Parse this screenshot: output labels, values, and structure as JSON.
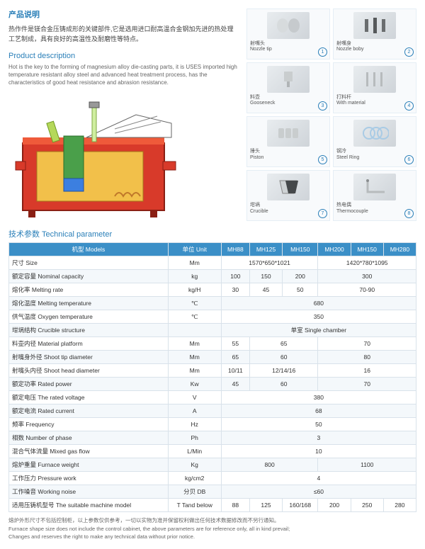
{
  "title_cn": "产品说明",
  "desc_cn": "热作件是镁合金压铸成形的关键部件,它是选用进口耐高温合金钢加先进的热处理工艺制成，具有良好的高温性及耐磨性等特点。",
  "title_en": "Product description",
  "desc_en": "Hot is the key to the forming of magnesium alloy die-casting parts, it is USES imported high temperature resistant alloy steel and advanced heat treatment process, has the characteristics of good heat resistance and abrasion resistance.",
  "parts": [
    {
      "cn": "射嘴头",
      "en": "Nozzle tip",
      "num": "1"
    },
    {
      "cn": "射嘴身",
      "en": "Nozzle boby",
      "num": "2"
    },
    {
      "cn": "料壶",
      "en": "Gooseneck",
      "num": "3"
    },
    {
      "cn": "打料杆",
      "en": "With material",
      "num": "4"
    },
    {
      "cn": "捶头",
      "en": "Piston",
      "num": "5"
    },
    {
      "cn": "钢冷",
      "en": "Steel Ring",
      "num": "6"
    },
    {
      "cn": "坩埚",
      "en": "Crucible",
      "num": "7"
    },
    {
      "cn": "热电偶",
      "en": "Thermocouple",
      "num": "8"
    }
  ],
  "table_title": "技术参数 Technical parameter",
  "headers": [
    "机型 Models",
    "单位 Unit",
    "MH88",
    "MH125",
    "MH150",
    "MH200",
    "MH150",
    "MH280"
  ],
  "rows": [
    {
      "label": "尺寸 Size",
      "unit": "Mm",
      "cells": [
        {
          "v": "1570*650*1021",
          "span": 3
        },
        {
          "v": "1420*780*1095",
          "span": 3
        }
      ]
    },
    {
      "label": "额定容量 Nominal capacity",
      "unit": "kg",
      "cells": [
        {
          "v": "100"
        },
        {
          "v": "150"
        },
        {
          "v": "200"
        },
        {
          "v": "300",
          "span": 3
        }
      ]
    },
    {
      "label": "熔化率 Melting rate",
      "unit": "kg/H",
      "cells": [
        {
          "v": "30"
        },
        {
          "v": "45"
        },
        {
          "v": "50"
        },
        {
          "v": "70-90",
          "span": 3
        }
      ]
    },
    {
      "label": "熔化温度 Melting temperature",
      "unit": "℃",
      "cells": [
        {
          "v": "680",
          "span": 6
        }
      ]
    },
    {
      "label": "供气温度 Oxygen temperature",
      "unit": "℃",
      "cells": [
        {
          "v": "350",
          "span": 6
        }
      ]
    },
    {
      "label": "坩埚结构 Crucible structure",
      "unit": "",
      "cells": [
        {
          "v": "单室 Single chamber",
          "span": 6
        }
      ]
    },
    {
      "label": "料壶内径 Material platform",
      "unit": "Mm",
      "cells": [
        {
          "v": "55"
        },
        {
          "v": "65",
          "span": 2
        },
        {
          "v": "70",
          "span": 3
        }
      ]
    },
    {
      "label": "射嘴身外径 Shoot tip diameter",
      "unit": "Mm",
      "cells": [
        {
          "v": "65"
        },
        {
          "v": "60",
          "span": 2
        },
        {
          "v": "80",
          "span": 3
        }
      ]
    },
    {
      "label": "射嘴头内径 Shoot head diameter",
      "unit": "Mm",
      "cells": [
        {
          "v": "10/11"
        },
        {
          "v": "12/14/16",
          "span": 2
        },
        {
          "v": "16",
          "span": 3
        }
      ]
    },
    {
      "label": "额定功率 Rated power",
      "unit": "Kw",
      "cells": [
        {
          "v": "45"
        },
        {
          "v": "60",
          "span": 2
        },
        {
          "v": "70",
          "span": 3
        }
      ]
    },
    {
      "label": "额定电压 The rated voltage",
      "unit": "V",
      "cells": [
        {
          "v": "380",
          "span": 6
        }
      ]
    },
    {
      "label": "额定电流 Rated current",
      "unit": "A",
      "cells": [
        {
          "v": "68",
          "span": 6
        }
      ]
    },
    {
      "label": "频率 Frequency",
      "unit": "Hz",
      "cells": [
        {
          "v": "50",
          "span": 6
        }
      ]
    },
    {
      "label": "相数 Number of phase",
      "unit": "Ph",
      "cells": [
        {
          "v": "3",
          "span": 6
        }
      ]
    },
    {
      "label": "混合气体流量 Mixed gas flow",
      "unit": "L/Min",
      "cells": [
        {
          "v": "10",
          "span": 6
        }
      ]
    },
    {
      "label": "熔炉重量 Furnace weight",
      "unit": "Kg",
      "cells": [
        {
          "v": "800",
          "span": 3
        },
        {
          "v": "1100",
          "span": 3
        }
      ]
    },
    {
      "label": "工作压力 Pressure  work",
      "unit": "kg/cm2",
      "cells": [
        {
          "v": "4",
          "span": 6
        }
      ]
    },
    {
      "label": "工作噪音 Working noise",
      "unit": "分贝 DB",
      "cells": [
        {
          "v": "≤60",
          "span": 6
        }
      ]
    },
    {
      "label": "适用压铸机型号 The suitable machine model",
      "unit": "T Tand below",
      "cells": [
        {
          "v": "88"
        },
        {
          "v": "125"
        },
        {
          "v": "160/168"
        },
        {
          "v": "200"
        },
        {
          "v": "250"
        },
        {
          "v": "280"
        }
      ]
    }
  ],
  "footnote_cn": "熔炉外形尺寸不包括控制柜，以上参数仅供参考，一切以实物为准并保留权利做出任何技术数据修改而不另行通知。",
  "footnote_en1": "Furnace shape size does not include the control cabinet, the above parameters are for reference only, all in kind prevail;",
  "footnote_en2": "Changes and reserves the right to make any technical data without prior notice.",
  "colors": {
    "brand": "#2a7fb8",
    "header_bg": "#3b8fc7",
    "row_alt": "#f4f8fb",
    "border": "#d9e2ea"
  }
}
